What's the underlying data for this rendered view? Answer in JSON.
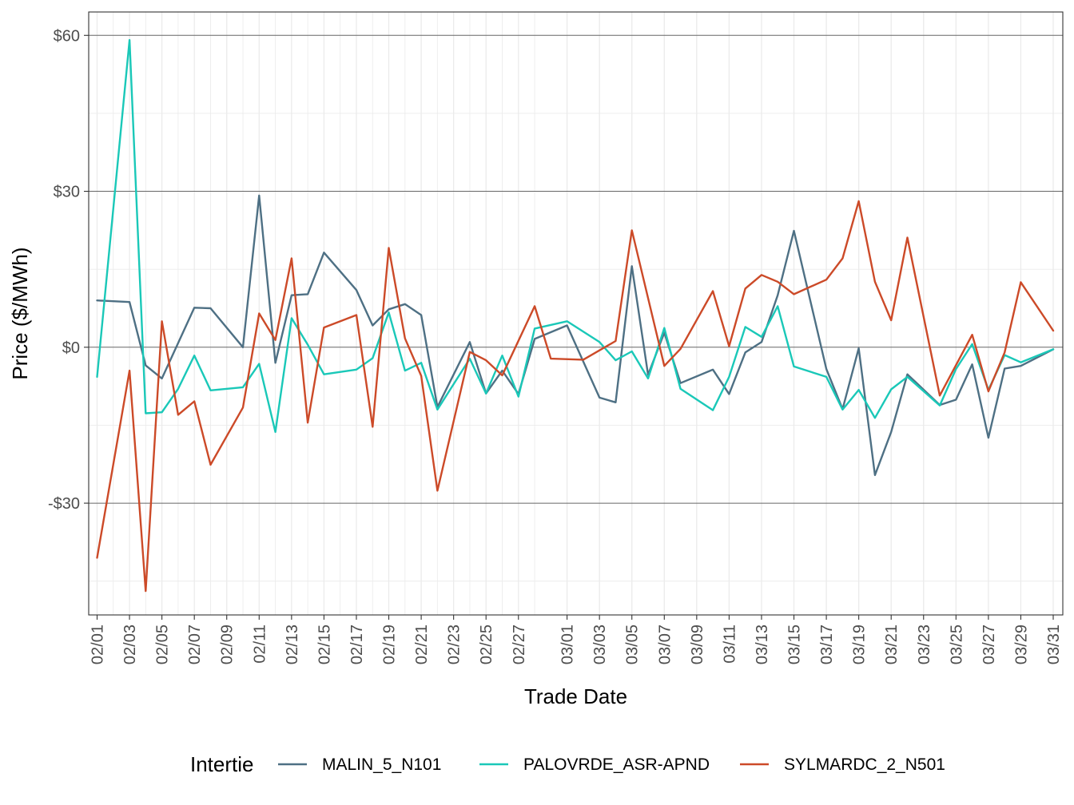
{
  "chart_data": {
    "type": "line",
    "title": "",
    "xlabel": "Trade Date",
    "ylabel": "Price ($/MWh)",
    "ylim": [
      -51.5,
      64.5
    ],
    "y_ticks": [
      {
        "value": 60,
        "label": "$60"
      },
      {
        "value": 30,
        "label": "$30"
      },
      {
        "value": 0,
        "label": "$0"
      },
      {
        "value": -30,
        "label": "-$30"
      }
    ],
    "x_tick_labels": [
      "02/01",
      "02/03",
      "02/05",
      "02/07",
      "02/09",
      "02/11",
      "02/13",
      "02/15",
      "02/17",
      "02/19",
      "02/21",
      "02/23",
      "02/25",
      "02/27",
      "03/01",
      "03/03",
      "03/05",
      "03/07",
      "03/09",
      "03/11",
      "03/13",
      "03/15",
      "03/17",
      "03/19",
      "03/21",
      "03/23",
      "03/25",
      "03/27",
      "03/29",
      "03/31"
    ],
    "grid": true,
    "legend": {
      "title": "Intertie",
      "position": "bottom"
    },
    "series": [
      {
        "name": "MALIN_5_N101",
        "color": "#4e7084",
        "points": [
          {
            "x": "02/01",
            "y": 9
          },
          {
            "x": "02/03",
            "y": 8.7
          },
          {
            "x": "02/04",
            "y": -3.5
          },
          {
            "x": "02/05",
            "y": -6
          },
          {
            "x": "02/07",
            "y": 7.6
          },
          {
            "x": "02/08",
            "y": 7.5
          },
          {
            "x": "02/10",
            "y": 0
          },
          {
            "x": "02/11",
            "y": 29.2
          },
          {
            "x": "02/12",
            "y": -3
          },
          {
            "x": "02/13",
            "y": 10
          },
          {
            "x": "02/14",
            "y": 10.2
          },
          {
            "x": "02/15",
            "y": 18.2
          },
          {
            "x": "02/17",
            "y": 11
          },
          {
            "x": "02/18",
            "y": 4.2
          },
          {
            "x": "02/19",
            "y": 7.3
          },
          {
            "x": "02/20",
            "y": 8.3
          },
          {
            "x": "02/21",
            "y": 6.2
          },
          {
            "x": "02/22",
            "y": -11.5
          },
          {
            "x": "02/24",
            "y": 1
          },
          {
            "x": "02/25",
            "y": -8.9
          },
          {
            "x": "02/26",
            "y": -4.5
          },
          {
            "x": "02/27",
            "y": -9
          },
          {
            "x": "02/28",
            "y": 1.6
          },
          {
            "x": "03/01",
            "y": 4.2
          },
          {
            "x": "03/03",
            "y": -9.7
          },
          {
            "x": "03/04",
            "y": -10.6
          },
          {
            "x": "03/05",
            "y": 15.6
          },
          {
            "x": "03/06",
            "y": -5.3
          },
          {
            "x": "03/07",
            "y": 2.8
          },
          {
            "x": "03/08",
            "y": -6.9
          },
          {
            "x": "03/10",
            "y": -4.3
          },
          {
            "x": "03/11",
            "y": -9
          },
          {
            "x": "03/12",
            "y": -1
          },
          {
            "x": "03/13",
            "y": 1
          },
          {
            "x": "03/14",
            "y": 10
          },
          {
            "x": "03/15",
            "y": 22.4
          },
          {
            "x": "03/17",
            "y": -4.2
          },
          {
            "x": "03/18",
            "y": -11.9
          },
          {
            "x": "03/19",
            "y": -0.2
          },
          {
            "x": "03/20",
            "y": -24.6
          },
          {
            "x": "03/21",
            "y": -16.3
          },
          {
            "x": "03/22",
            "y": -5.2
          },
          {
            "x": "03/24",
            "y": -11.1
          },
          {
            "x": "03/25",
            "y": -10.1
          },
          {
            "x": "03/26",
            "y": -3.3
          },
          {
            "x": "03/27",
            "y": -17.4
          },
          {
            "x": "03/28",
            "y": -4.1
          },
          {
            "x": "03/29",
            "y": -3.6
          },
          {
            "x": "03/31",
            "y": -0.4
          }
        ]
      },
      {
        "name": "PALOVRDE_ASR-APND",
        "color": "#1ac8b8",
        "points": [
          {
            "x": "02/01",
            "y": -5.7
          },
          {
            "x": "02/03",
            "y": 59.1
          },
          {
            "x": "02/04",
            "y": -12.7
          },
          {
            "x": "02/05",
            "y": -12.5
          },
          {
            "x": "02/06",
            "y": -8
          },
          {
            "x": "02/07",
            "y": -1.6
          },
          {
            "x": "02/08",
            "y": -8.3
          },
          {
            "x": "02/10",
            "y": -7.7
          },
          {
            "x": "02/11",
            "y": -3.2
          },
          {
            "x": "02/12",
            "y": -16.3
          },
          {
            "x": "02/13",
            "y": 5.6
          },
          {
            "x": "02/14",
            "y": 0.5
          },
          {
            "x": "02/15",
            "y": -5.2
          },
          {
            "x": "02/17",
            "y": -4.3
          },
          {
            "x": "02/18",
            "y": -2.1
          },
          {
            "x": "02/19",
            "y": 6.7
          },
          {
            "x": "02/20",
            "y": -4.5
          },
          {
            "x": "02/21",
            "y": -3
          },
          {
            "x": "02/22",
            "y": -12
          },
          {
            "x": "02/24",
            "y": -2.2
          },
          {
            "x": "02/25",
            "y": -8.9
          },
          {
            "x": "02/26",
            "y": -1.6
          },
          {
            "x": "02/27",
            "y": -9.5
          },
          {
            "x": "02/28",
            "y": 3.6
          },
          {
            "x": "03/01",
            "y": 5
          },
          {
            "x": "03/03",
            "y": 1
          },
          {
            "x": "03/04",
            "y": -2.5
          },
          {
            "x": "03/05",
            "y": -0.8
          },
          {
            "x": "03/06",
            "y": -6
          },
          {
            "x": "03/07",
            "y": 3.7
          },
          {
            "x": "03/08",
            "y": -8
          },
          {
            "x": "03/10",
            "y": -12.1
          },
          {
            "x": "03/11",
            "y": -5.7
          },
          {
            "x": "03/12",
            "y": 3.9
          },
          {
            "x": "03/13",
            "y": 2
          },
          {
            "x": "03/14",
            "y": 7.9
          },
          {
            "x": "03/15",
            "y": -3.7
          },
          {
            "x": "03/17",
            "y": -5.7
          },
          {
            "x": "03/18",
            "y": -12
          },
          {
            "x": "03/19",
            "y": -8.2
          },
          {
            "x": "03/20",
            "y": -13.6
          },
          {
            "x": "03/21",
            "y": -8.1
          },
          {
            "x": "03/22",
            "y": -5.7
          },
          {
            "x": "03/24",
            "y": -11.2
          },
          {
            "x": "03/25",
            "y": -4.2
          },
          {
            "x": "03/26",
            "y": 0.6
          },
          {
            "x": "03/27",
            "y": -8.2
          },
          {
            "x": "03/28",
            "y": -1.5
          },
          {
            "x": "03/29",
            "y": -2.9
          },
          {
            "x": "03/31",
            "y": -0.4
          }
        ]
      },
      {
        "name": "SYLMARDC_2_N501",
        "color": "#cc4a28",
        "points": [
          {
            "x": "02/01",
            "y": -40.5
          },
          {
            "x": "02/03",
            "y": -4.5
          },
          {
            "x": "02/04",
            "y": -46.9
          },
          {
            "x": "02/05",
            "y": 5
          },
          {
            "x": "02/06",
            "y": -13
          },
          {
            "x": "02/07",
            "y": -10.4
          },
          {
            "x": "02/08",
            "y": -22.6
          },
          {
            "x": "02/10",
            "y": -11.6
          },
          {
            "x": "02/11",
            "y": 6.5
          },
          {
            "x": "02/12",
            "y": 1.4
          },
          {
            "x": "02/13",
            "y": 17.1
          },
          {
            "x": "02/14",
            "y": -14.5
          },
          {
            "x": "02/15",
            "y": 3.8
          },
          {
            "x": "02/17",
            "y": 6.2
          },
          {
            "x": "02/18",
            "y": -15.3
          },
          {
            "x": "02/19",
            "y": 19.1
          },
          {
            "x": "02/20",
            "y": 1.7
          },
          {
            "x": "02/21",
            "y": -5.5
          },
          {
            "x": "02/22",
            "y": -27.6
          },
          {
            "x": "02/24",
            "y": -0.9
          },
          {
            "x": "02/25",
            "y": -2.5
          },
          {
            "x": "02/26",
            "y": -5.4
          },
          {
            "x": "02/28",
            "y": 7.9
          },
          {
            "x": "02/29",
            "y": -2.2
          },
          {
            "x": "03/02",
            "y": -2.4
          },
          {
            "x": "03/04",
            "y": 1.2
          },
          {
            "x": "03/05",
            "y": 22.5
          },
          {
            "x": "03/07",
            "y": -3.6
          },
          {
            "x": "03/08",
            "y": -0.3
          },
          {
            "x": "03/10",
            "y": 10.8
          },
          {
            "x": "03/11",
            "y": 0.2
          },
          {
            "x": "03/12",
            "y": 11.3
          },
          {
            "x": "03/13",
            "y": 13.9
          },
          {
            "x": "03/14",
            "y": 12.6
          },
          {
            "x": "03/15",
            "y": 10.2
          },
          {
            "x": "03/17",
            "y": 13
          },
          {
            "x": "03/18",
            "y": 17.1
          },
          {
            "x": "03/19",
            "y": 28.1
          },
          {
            "x": "03/20",
            "y": 12.6
          },
          {
            "x": "03/21",
            "y": 5.2
          },
          {
            "x": "03/22",
            "y": 21.1
          },
          {
            "x": "03/24",
            "y": -9.3
          },
          {
            "x": "03/26",
            "y": 2.4
          },
          {
            "x": "03/27",
            "y": -8.5
          },
          {
            "x": "03/28",
            "y": -1
          },
          {
            "x": "03/29",
            "y": 12.5
          },
          {
            "x": "03/31",
            "y": 3.2
          }
        ]
      }
    ]
  }
}
